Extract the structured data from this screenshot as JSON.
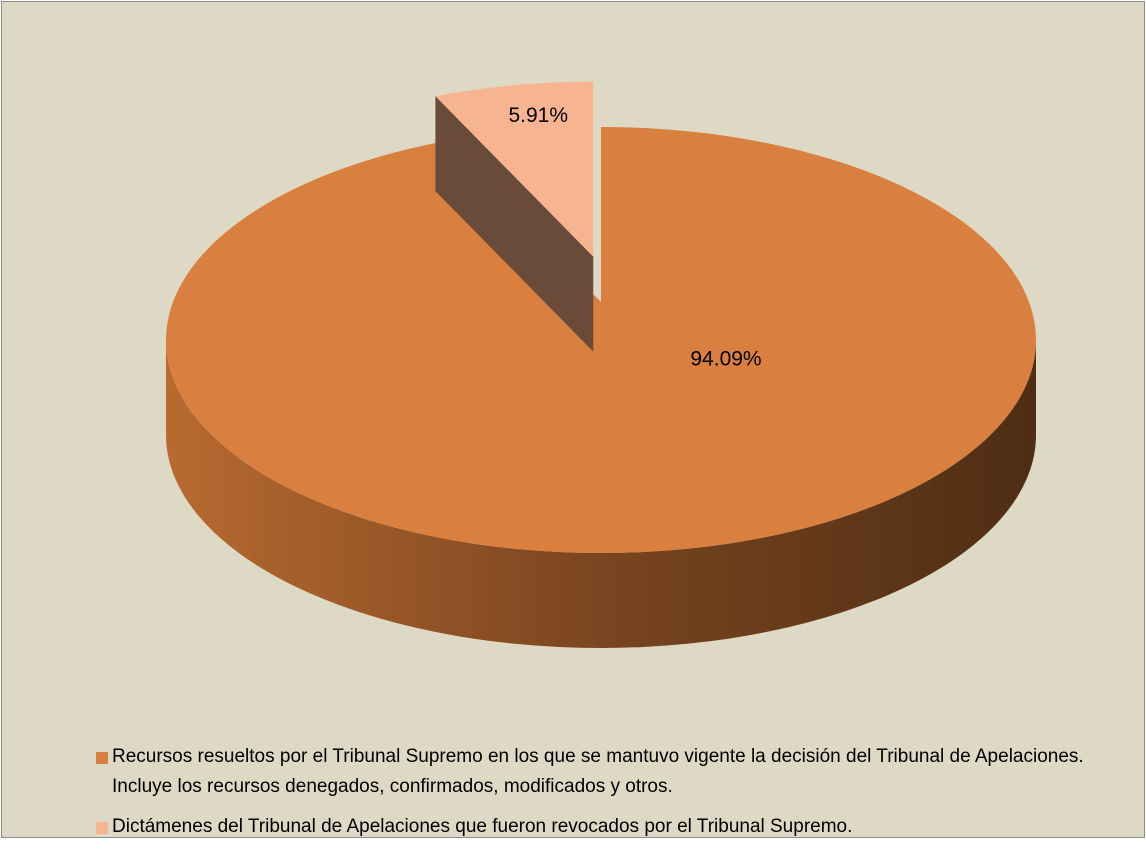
{
  "chart_data": {
    "type": "pie",
    "categories": [
      "Recursos resueltos por el Tribunal Supremo en los que se mantuvo vigente la decisión del Tribunal de Apelaciones. Incluye los recursos denegados, confirmados, modificados y otros.",
      "Dictámenes del Tribunal de Apelaciones que fueron revocados por el Tribunal Supremo."
    ],
    "values": [
      94.09,
      5.91
    ],
    "value_labels": [
      "94.09%",
      "5.91%"
    ],
    "colors": [
      "#d98040",
      "#f6b590"
    ],
    "legend": "bottom"
  }
}
